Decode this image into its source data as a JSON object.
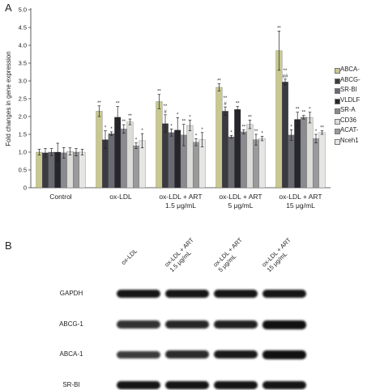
{
  "panel_a": {
    "letter": "A",
    "chart_data": {
      "type": "bar",
      "ylabel": "Fold changes in gene expression",
      "ylim": [
        0,
        5.0
      ],
      "yticks": [
        "0",
        "0.5",
        "1.0",
        "1.5",
        "2.0",
        "2.5",
        "3.0",
        "3.5",
        "4.0",
        "4.5",
        "5.0"
      ],
      "categories": [
        "Control",
        "ox-LDL",
        "ox-LDL + ART\n1.5 μg/mL",
        "ox-LDL + ART\n5 μg/mL",
        "ox-LDL + ART\n15 μg/mL"
      ],
      "series": [
        {
          "name": "ABCA-",
          "color": "#c8c890",
          "values": [
            1.0,
            2.15,
            2.42,
            2.82,
            3.85
          ],
          "errors": [
            0.08,
            0.15,
            0.2,
            0.1,
            0.55
          ],
          "marks": [
            "",
            "**",
            "**",
            "**",
            "**"
          ]
        },
        {
          "name": "ABCG-",
          "color": "#3a3a40",
          "values": [
            0.98,
            1.35,
            1.8,
            2.15,
            2.97
          ],
          "errors": [
            0.12,
            0.25,
            0.25,
            0.12,
            0.08
          ],
          "marks": [
            "",
            "*",
            "**\n#",
            "**\n#",
            "**\n##"
          ]
        },
        {
          "name": "SR-BI",
          "color": "#6a6a72",
          "values": [
            1.0,
            1.52,
            1.55,
            1.43,
            1.48
          ],
          "errors": [
            0.1,
            0.05,
            0.1,
            0.04,
            0.15
          ],
          "marks": [
            "",
            "*",
            "*",
            "*",
            "*"
          ]
        },
        {
          "name": "VLDLF",
          "color": "#26262c",
          "values": [
            1.0,
            1.98,
            1.62,
            2.2,
            1.92
          ],
          "errors": [
            0.25,
            0.3,
            0.35,
            0.08,
            0.2
          ],
          "marks": [
            "",
            "**",
            "*",
            "**",
            "**"
          ]
        },
        {
          "name": "SR-A",
          "color": "#8a8a90",
          "values": [
            0.98,
            1.65,
            1.48,
            1.57,
            1.98
          ],
          "errors": [
            0.15,
            0.12,
            0.3,
            0.06,
            0.05
          ],
          "marks": [
            "",
            "**",
            "**",
            "**",
            "**"
          ]
        },
        {
          "name": "CD36",
          "color": "#dcdcd8",
          "values": [
            1.02,
            1.85,
            1.75,
            1.78,
            1.97
          ],
          "errors": [
            0.1,
            0.08,
            0.15,
            0.12,
            0.15
          ],
          "marks": [
            "",
            "**",
            "*",
            "**",
            "*"
          ]
        },
        {
          "name": "ACAT-",
          "color": "#9a9a9c",
          "values": [
            1.0,
            1.18,
            1.28,
            1.35,
            1.38
          ],
          "errors": [
            0.1,
            0.08,
            0.1,
            0.15,
            0.12
          ],
          "marks": [
            "",
            "*",
            "*",
            "**",
            "*"
          ]
        },
        {
          "name": "Nceh1",
          "color": "#e6e6e4",
          "values": [
            1.0,
            1.32,
            1.35,
            1.38,
            1.55
          ],
          "errors": [
            0.08,
            0.2,
            0.2,
            0.06,
            0.05
          ],
          "marks": [
            "",
            "*",
            "*",
            "*",
            "**"
          ]
        }
      ]
    }
  },
  "panel_b": {
    "letter": "B",
    "lanes": [
      "ox-LDL",
      "ox-LDL + ART\n1.5 μg/mL",
      "ox-LDL + ART\n5 μg/mL",
      "ox-LDL + ART\n15 μg/mL"
    ],
    "rows": [
      {
        "label": "GAPDH",
        "intensity": [
          0.95,
          0.95,
          0.95,
          0.95
        ]
      },
      {
        "label": "ABCG-1",
        "intensity": [
          0.7,
          0.8,
          0.85,
          1.0
        ]
      },
      {
        "label": "ABCA-1",
        "intensity": [
          0.6,
          0.75,
          0.9,
          1.0
        ]
      },
      {
        "label": "SR-BI",
        "intensity": [
          0.95,
          0.95,
          0.95,
          0.95
        ]
      }
    ]
  }
}
